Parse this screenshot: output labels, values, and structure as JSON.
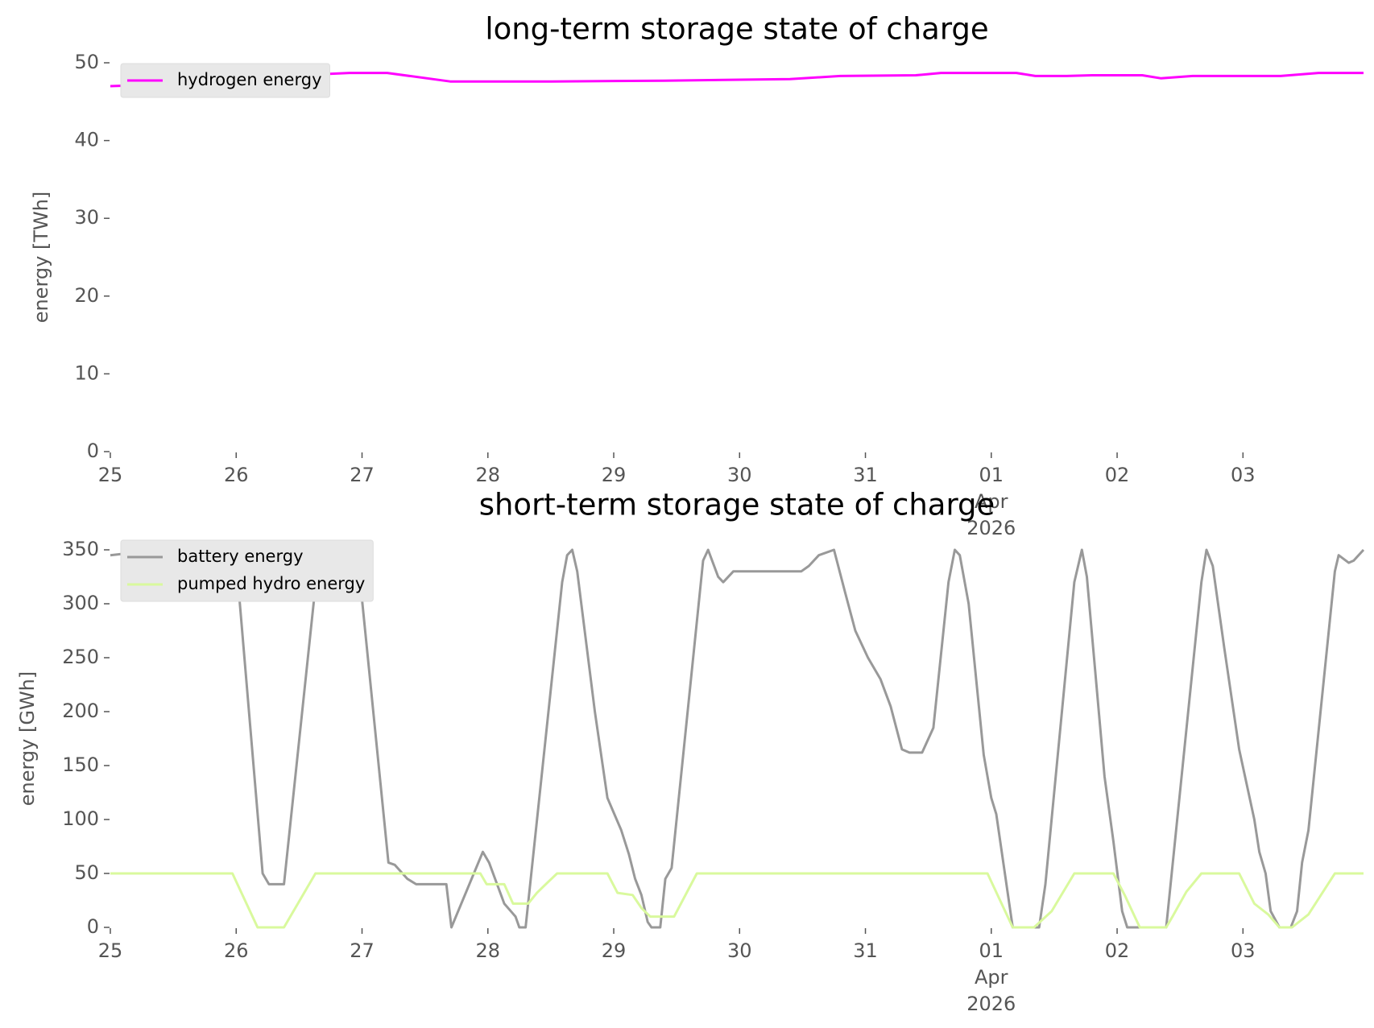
{
  "chart_data": [
    {
      "type": "line",
      "title": "long-term storage state of charge",
      "ylabel": "energy [TWh]",
      "xlim": [
        0,
        9.958
      ],
      "ylim": [
        0,
        50
      ],
      "xticks": [
        {
          "value": 0,
          "label": "25"
        },
        {
          "value": 1,
          "label": "26"
        },
        {
          "value": 2,
          "label": "27"
        },
        {
          "value": 3,
          "label": "28"
        },
        {
          "value": 4,
          "label": "29"
        },
        {
          "value": 5,
          "label": "30"
        },
        {
          "value": 6,
          "label": "31"
        },
        {
          "value": 7,
          "label": "01\nApr\n2026"
        },
        {
          "value": 8,
          "label": "02"
        },
        {
          "value": 9,
          "label": "03"
        }
      ],
      "yticks": [
        0,
        10,
        20,
        30,
        40,
        50
      ],
      "legend": "upper left",
      "series": [
        {
          "name": "hydrogen energy",
          "color": "#ff00ff",
          "x": [
            0,
            0.4,
            1.0,
            1.5,
            1.9,
            2.2,
            2.7,
            3.5,
            4.4,
            5.4,
            5.8,
            6.4,
            6.6,
            7.2,
            7.35,
            7.6,
            7.8,
            8.2,
            8.35,
            8.6,
            9.3,
            9.6,
            9.958
          ],
          "values": [
            47.0,
            47.2,
            47.9,
            48.4,
            48.7,
            48.7,
            47.6,
            47.6,
            47.7,
            47.9,
            48.3,
            48.4,
            48.7,
            48.7,
            48.3,
            48.3,
            48.4,
            48.4,
            48.0,
            48.3,
            48.3,
            48.7,
            48.7
          ]
        }
      ]
    },
    {
      "type": "line",
      "title": "short-term storage state of charge",
      "ylabel": "energy [GWh]",
      "xlim": [
        0,
        9.958
      ],
      "ylim": [
        0,
        350
      ],
      "xticks": [
        {
          "value": 0,
          "label": "25"
        },
        {
          "value": 1,
          "label": "26"
        },
        {
          "value": 2,
          "label": "27"
        },
        {
          "value": 3,
          "label": "28"
        },
        {
          "value": 4,
          "label": "29"
        },
        {
          "value": 5,
          "label": "30"
        },
        {
          "value": 6,
          "label": "31"
        },
        {
          "value": 7,
          "label": "01\nApr\n2026"
        },
        {
          "value": 8,
          "label": "02"
        },
        {
          "value": 9,
          "label": "03"
        }
      ],
      "yticks": [
        0,
        50,
        100,
        150,
        200,
        250,
        300,
        350
      ],
      "legend": "upper left",
      "series": [
        {
          "name": "battery energy",
          "color": "#999999",
          "x": [
            0,
            0.38,
            0.91,
            1.0,
            1.21,
            1.26,
            1.38,
            1.66,
            1.96,
            2.21,
            2.26,
            2.36,
            2.43,
            2.67,
            2.71,
            2.96,
            3.01,
            3.13,
            3.22,
            3.25,
            3.3,
            3.59,
            3.63,
            3.67,
            3.71,
            3.85,
            3.95,
            4.06,
            4.12,
            4.17,
            4.22,
            4.27,
            4.3,
            4.37,
            4.41,
            4.46,
            4.71,
            4.75,
            4.83,
            4.87,
            4.95,
            5.49,
            5.55,
            5.63,
            5.75,
            5.84,
            5.92,
            6.02,
            6.12,
            6.2,
            6.29,
            6.35,
            6.45,
            6.54,
            6.66,
            6.71,
            6.75,
            6.82,
            6.94,
            7.0,
            7.04,
            7.17,
            7.38,
            7.43,
            7.66,
            7.72,
            7.76,
            7.9,
            7.97,
            8.04,
            8.08,
            8.39,
            8.67,
            8.71,
            8.76,
            8.85,
            8.97,
            9.09,
            9.13,
            9.18,
            9.22,
            9.29,
            9.38,
            9.43,
            9.47,
            9.52,
            9.73,
            9.76,
            9.84,
            9.88,
            9.958
          ],
          "values": [
            345,
            350,
            350,
            340,
            50,
            40,
            40,
            350,
            350,
            60,
            58,
            45,
            40,
            40,
            0,
            70,
            60,
            22,
            10,
            0,
            0,
            320,
            345,
            350,
            330,
            200,
            120,
            90,
            68,
            45,
            30,
            5,
            0,
            0,
            45,
            55,
            340,
            350,
            325,
            320,
            330,
            330,
            335,
            345,
            350,
            310,
            275,
            250,
            230,
            205,
            165,
            162,
            162,
            185,
            320,
            350,
            345,
            300,
            160,
            120,
            105,
            0,
            0,
            40,
            320,
            350,
            325,
            140,
            80,
            15,
            0,
            0,
            320,
            350,
            335,
            260,
            165,
            100,
            70,
            50,
            15,
            0,
            0,
            15,
            60,
            90,
            330,
            345,
            338,
            340,
            350
          ]
        },
        {
          "name": "pumped hydro energy",
          "color": "#d9f99d",
          "x": [
            0,
            0.97,
            1.17,
            1.38,
            1.63,
            2.94,
            2.99,
            3.13,
            3.2,
            3.32,
            3.39,
            3.46,
            3.55,
            3.95,
            4.03,
            4.15,
            4.22,
            4.29,
            4.48,
            4.66,
            6.97,
            7.17,
            7.34,
            7.48,
            7.66,
            7.97,
            8.06,
            8.18,
            8.39,
            8.44,
            8.55,
            8.67,
            8.97,
            9.09,
            9.2,
            9.29,
            9.39,
            9.52,
            9.73,
            9.958
          ],
          "values": [
            50,
            50,
            0,
            0,
            50,
            50,
            40,
            40,
            22,
            22,
            32,
            40,
            50,
            50,
            32,
            30,
            18,
            10,
            10,
            50,
            50,
            0,
            0,
            15,
            50,
            50,
            30,
            0,
            0,
            10,
            33,
            50,
            50,
            22,
            12,
            0,
            0,
            12,
            50,
            50
          ]
        }
      ]
    }
  ]
}
